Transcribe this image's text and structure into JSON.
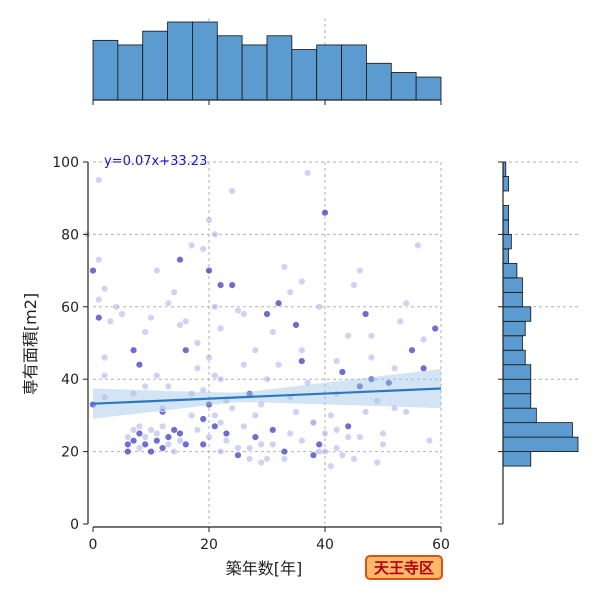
{
  "chart_data": {
    "type": "scatter",
    "title": "",
    "xlabel": "築年数[年]",
    "ylabel": "専有面積[m2]",
    "xlim": [
      0,
      60
    ],
    "ylim": [
      0,
      100
    ],
    "xticks": [
      "0",
      "20",
      "40",
      "60"
    ],
    "yticks": [
      "0",
      "20",
      "40",
      "60",
      "80",
      "100"
    ],
    "grid": true,
    "regression": {
      "slope": 0.07,
      "intercept": 33.23,
      "label": "y=0.07x+33.23"
    },
    "points": [
      [
        0,
        33
      ],
      [
        1,
        95
      ],
      [
        2,
        35
      ],
      [
        -1,
        80
      ],
      [
        0,
        70
      ],
      [
        1,
        62
      ],
      [
        2,
        46
      ],
      [
        2,
        41
      ],
      [
        1,
        57
      ],
      [
        4,
        60
      ],
      [
        1,
        73
      ],
      [
        2,
        65
      ],
      [
        6,
        22
      ],
      [
        6,
        24
      ],
      [
        6,
        20
      ],
      [
        7,
        26
      ],
      [
        7,
        23
      ],
      [
        8,
        21
      ],
      [
        8,
        25
      ],
      [
        8,
        27
      ],
      [
        9,
        22
      ],
      [
        9,
        24
      ],
      [
        10,
        20
      ],
      [
        10,
        26
      ],
      [
        11,
        23
      ],
      [
        11,
        25
      ],
      [
        12,
        21
      ],
      [
        12,
        27
      ],
      [
        13,
        24
      ],
      [
        13,
        22
      ],
      [
        14,
        26
      ],
      [
        14,
        20
      ],
      [
        15,
        25
      ],
      [
        15,
        23
      ],
      [
        16,
        22
      ],
      [
        7,
        36
      ],
      [
        8,
        44
      ],
      [
        9,
        53
      ],
      [
        10,
        57
      ],
      [
        11,
        41
      ],
      [
        12,
        31
      ],
      [
        13,
        61
      ],
      [
        14,
        64
      ],
      [
        15,
        55
      ],
      [
        16,
        48
      ],
      [
        17,
        77
      ],
      [
        18,
        43
      ],
      [
        19,
        76
      ],
      [
        20,
        70
      ],
      [
        21,
        60
      ],
      [
        22,
        54
      ],
      [
        19,
        37
      ],
      [
        20,
        33
      ],
      [
        21,
        30
      ],
      [
        22,
        28
      ],
      [
        18,
        26
      ],
      [
        19,
        29
      ],
      [
        20,
        46
      ],
      [
        21,
        41
      ],
      [
        18,
        50
      ],
      [
        19,
        22
      ],
      [
        20,
        24
      ],
      [
        21,
        27
      ],
      [
        22,
        20
      ],
      [
        23,
        25
      ],
      [
        24,
        32
      ],
      [
        20,
        84
      ],
      [
        21,
        80
      ],
      [
        22,
        66
      ],
      [
        24,
        92
      ],
      [
        25,
        59
      ],
      [
        26,
        44
      ],
      [
        27,
        36
      ],
      [
        28,
        30
      ],
      [
        29,
        22
      ],
      [
        30,
        18
      ],
      [
        31,
        26
      ],
      [
        32,
        44
      ],
      [
        33,
        71
      ],
      [
        34,
        64
      ],
      [
        35,
        55
      ],
      [
        36,
        48
      ],
      [
        37,
        39
      ],
      [
        38,
        28
      ],
      [
        39,
        22
      ],
      [
        40,
        20
      ],
      [
        41,
        30
      ],
      [
        42,
        36
      ],
      [
        43,
        42
      ],
      [
        44,
        52
      ],
      [
        45,
        66
      ],
      [
        46,
        70
      ],
      [
        47,
        58
      ],
      [
        48,
        46
      ],
      [
        49,
        34
      ],
      [
        50,
        25
      ],
      [
        51,
        39
      ],
      [
        52,
        43
      ],
      [
        53,
        56
      ],
      [
        54,
        61
      ],
      [
        55,
        48
      ],
      [
        56,
        77
      ],
      [
        57,
        51
      ],
      [
        58,
        23
      ],
      [
        59,
        54
      ],
      [
        25,
        21
      ],
      [
        26,
        27
      ],
      [
        27,
        18
      ],
      [
        28,
        24
      ],
      [
        29,
        33
      ],
      [
        30,
        40
      ],
      [
        31,
        53
      ],
      [
        32,
        61
      ],
      [
        33,
        18
      ],
      [
        34,
        25
      ],
      [
        35,
        31
      ],
      [
        36,
        45
      ],
      [
        37,
        97
      ],
      [
        38,
        28
      ],
      [
        39,
        20
      ],
      [
        40,
        86
      ],
      [
        41,
        16
      ],
      [
        42,
        26
      ],
      [
        43,
        19
      ],
      [
        44,
        27
      ],
      [
        45,
        18
      ],
      [
        46,
        24
      ],
      [
        47,
        31
      ],
      [
        48,
        40
      ],
      [
        49,
        17
      ],
      [
        50,
        22
      ],
      [
        36,
        23
      ],
      [
        38,
        19
      ],
      [
        40,
        25
      ],
      [
        42,
        21
      ],
      [
        44,
        24
      ],
      [
        33,
        20
      ],
      [
        31,
        22
      ],
      [
        29,
        17
      ],
      [
        27,
        21
      ],
      [
        25,
        19
      ],
      [
        23,
        23
      ],
      [
        17,
        36
      ],
      [
        16,
        56
      ],
      [
        15,
        73
      ],
      [
        13,
        38
      ],
      [
        11,
        70
      ],
      [
        9,
        38
      ],
      [
        7,
        48
      ],
      [
        5,
        58
      ],
      [
        3,
        56
      ],
      [
        12,
        32
      ],
      [
        24,
        66
      ],
      [
        28,
        48
      ],
      [
        34,
        35
      ],
      [
        26,
        58
      ],
      [
        30,
        58
      ],
      [
        36,
        67
      ],
      [
        39,
        60
      ],
      [
        42,
        45
      ],
      [
        46,
        38
      ],
      [
        48,
        52
      ],
      [
        52,
        32
      ],
      [
        54,
        31
      ],
      [
        57,
        43
      ],
      [
        22,
        40
      ],
      [
        23,
        34
      ],
      [
        17,
        30
      ]
    ]
  },
  "badge": {
    "label": "天王寺区"
  }
}
